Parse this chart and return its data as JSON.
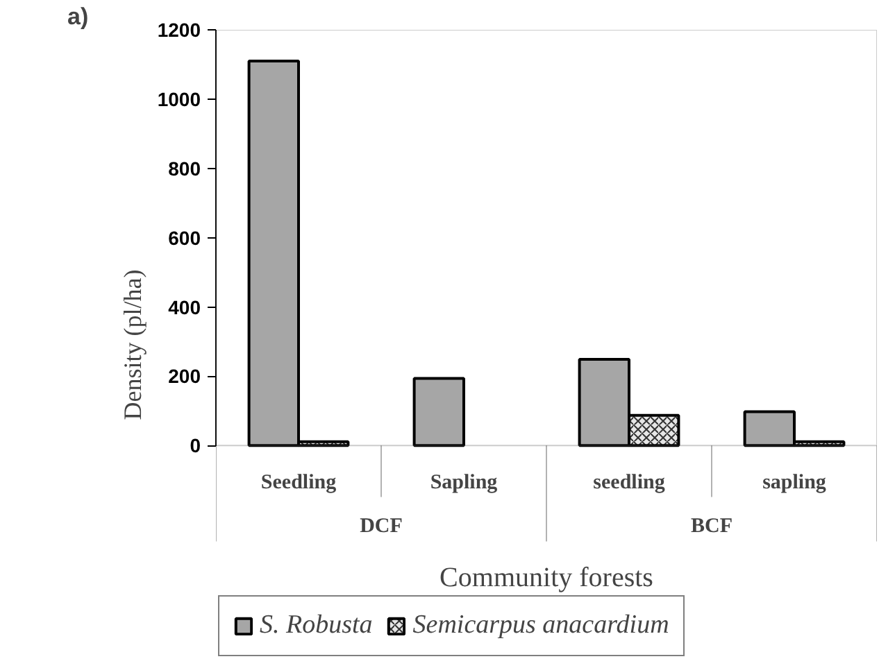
{
  "chart_data": {
    "type": "bar",
    "xlabel": "Community forests",
    "ylabel": "Density (pl/ha)",
    "categories": [
      "Seedling",
      "Sapling",
      "seedling",
      "sapling"
    ],
    "series": [
      {
        "name": "S. Robusta",
        "color": "#a6a6a6",
        "values": [
          1110,
          194,
          249,
          98
        ]
      },
      {
        "name": "Semicarpus anacardium",
        "color": "#e6e6e6",
        "values": [
          11,
          null,
          87,
          11
        ]
      }
    ],
    "ylim": [
      0,
      1200
    ],
    "yticks": [
      0,
      200,
      400,
      600,
      800,
      1000,
      1200
    ],
    "grid": false,
    "legend": "bottom",
    "annotations": [
      "a)",
      "DCF",
      "BCF"
    ]
  }
}
